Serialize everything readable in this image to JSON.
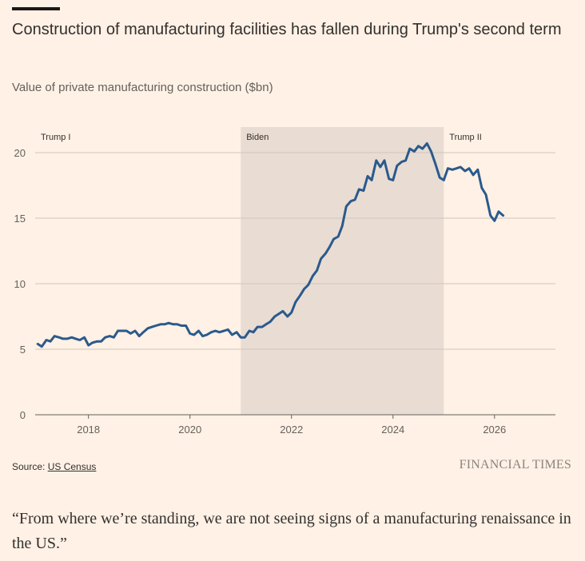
{
  "chart_data": {
    "type": "line",
    "title": "Construction of manufacturing facilities has fallen during Trump's second term",
    "subtitle": "Value of private manufacturing construction ($bn)",
    "xlabel": "",
    "ylabel": "",
    "ylim": [
      0,
      20
    ],
    "yticks": [
      0,
      5,
      10,
      15,
      20
    ],
    "xticks": [
      2018,
      2020,
      2022,
      2024,
      2026
    ],
    "grid": true,
    "periods": [
      {
        "label": "Trump I",
        "start": 2017.0,
        "end": 2021.0,
        "shaded": false
      },
      {
        "label": "Biden",
        "start": 2021.0,
        "end": 2025.0,
        "shaded": true
      },
      {
        "label": "Trump II",
        "start": 2025.0,
        "end": 2026.3,
        "shaded": false
      }
    ],
    "series": [
      {
        "color": "#2a5a8c",
        "points": [
          [
            2017.0,
            5.4
          ],
          [
            2017.08,
            5.2
          ],
          [
            2017.17,
            5.7
          ],
          [
            2017.25,
            5.6
          ],
          [
            2017.33,
            6.0
          ],
          [
            2017.42,
            5.9
          ],
          [
            2017.5,
            5.8
          ],
          [
            2017.58,
            5.8
          ],
          [
            2017.67,
            5.9
          ],
          [
            2017.75,
            5.8
          ],
          [
            2017.83,
            5.7
          ],
          [
            2017.92,
            5.9
          ],
          [
            2018.0,
            5.3
          ],
          [
            2018.08,
            5.5
          ],
          [
            2018.17,
            5.6
          ],
          [
            2018.25,
            5.6
          ],
          [
            2018.33,
            5.9
          ],
          [
            2018.42,
            6.0
          ],
          [
            2018.5,
            5.9
          ],
          [
            2018.58,
            6.4
          ],
          [
            2018.67,
            6.4
          ],
          [
            2018.75,
            6.4
          ],
          [
            2018.83,
            6.2
          ],
          [
            2018.92,
            6.4
          ],
          [
            2019.0,
            6.0
          ],
          [
            2019.08,
            6.3
          ],
          [
            2019.17,
            6.6
          ],
          [
            2019.25,
            6.7
          ],
          [
            2019.33,
            6.8
          ],
          [
            2019.42,
            6.9
          ],
          [
            2019.5,
            6.9
          ],
          [
            2019.58,
            7.0
          ],
          [
            2019.67,
            6.9
          ],
          [
            2019.75,
            6.9
          ],
          [
            2019.83,
            6.8
          ],
          [
            2019.92,
            6.8
          ],
          [
            2020.0,
            6.2
          ],
          [
            2020.08,
            6.1
          ],
          [
            2020.17,
            6.4
          ],
          [
            2020.25,
            6.0
          ],
          [
            2020.33,
            6.1
          ],
          [
            2020.42,
            6.3
          ],
          [
            2020.5,
            6.4
          ],
          [
            2020.58,
            6.3
          ],
          [
            2020.67,
            6.4
          ],
          [
            2020.75,
            6.5
          ],
          [
            2020.83,
            6.1
          ],
          [
            2020.92,
            6.3
          ],
          [
            2021.0,
            5.9
          ],
          [
            2021.08,
            5.9
          ],
          [
            2021.17,
            6.4
          ],
          [
            2021.25,
            6.3
          ],
          [
            2021.33,
            6.7
          ],
          [
            2021.42,
            6.7
          ],
          [
            2021.5,
            6.9
          ],
          [
            2021.58,
            7.1
          ],
          [
            2021.67,
            7.5
          ],
          [
            2021.75,
            7.7
          ],
          [
            2021.83,
            7.9
          ],
          [
            2021.92,
            7.5
          ],
          [
            2022.0,
            7.8
          ],
          [
            2022.08,
            8.6
          ],
          [
            2022.17,
            9.1
          ],
          [
            2022.25,
            9.6
          ],
          [
            2022.33,
            9.9
          ],
          [
            2022.42,
            10.6
          ],
          [
            2022.5,
            11.0
          ],
          [
            2022.58,
            11.9
          ],
          [
            2022.67,
            12.3
          ],
          [
            2022.75,
            12.8
          ],
          [
            2022.83,
            13.4
          ],
          [
            2022.92,
            13.6
          ],
          [
            2023.0,
            14.4
          ],
          [
            2023.08,
            15.9
          ],
          [
            2023.17,
            16.3
          ],
          [
            2023.25,
            16.4
          ],
          [
            2023.33,
            17.2
          ],
          [
            2023.42,
            17.1
          ],
          [
            2023.5,
            18.2
          ],
          [
            2023.58,
            17.9
          ],
          [
            2023.67,
            19.4
          ],
          [
            2023.75,
            18.9
          ],
          [
            2023.83,
            19.4
          ],
          [
            2023.92,
            18.0
          ],
          [
            2024.0,
            17.9
          ],
          [
            2024.08,
            19.0
          ],
          [
            2024.17,
            19.3
          ],
          [
            2024.25,
            19.4
          ],
          [
            2024.33,
            20.3
          ],
          [
            2024.42,
            20.1
          ],
          [
            2024.5,
            20.5
          ],
          [
            2024.58,
            20.3
          ],
          [
            2024.67,
            20.7
          ],
          [
            2024.75,
            20.1
          ],
          [
            2024.83,
            19.2
          ],
          [
            2024.92,
            18.1
          ],
          [
            2025.0,
            17.9
          ],
          [
            2025.08,
            18.8
          ],
          [
            2025.17,
            18.7
          ],
          [
            2025.25,
            18.8
          ],
          [
            2025.33,
            18.9
          ],
          [
            2025.42,
            18.6
          ],
          [
            2025.5,
            18.8
          ],
          [
            2025.58,
            18.3
          ],
          [
            2025.67,
            18.7
          ],
          [
            2025.75,
            17.3
          ],
          [
            2025.83,
            16.8
          ],
          [
            2025.92,
            15.2
          ],
          [
            2026.0,
            14.8
          ],
          [
            2026.08,
            15.5
          ],
          [
            2026.17,
            15.2
          ]
        ]
      }
    ]
  },
  "footer": {
    "source_label": "Source: ",
    "source_name": "US Census",
    "brand": "FINANCIAL TIMES"
  },
  "quote": "“From where we’re standing, we are not seeing signs of a manufacturing renaissance in the US.”"
}
